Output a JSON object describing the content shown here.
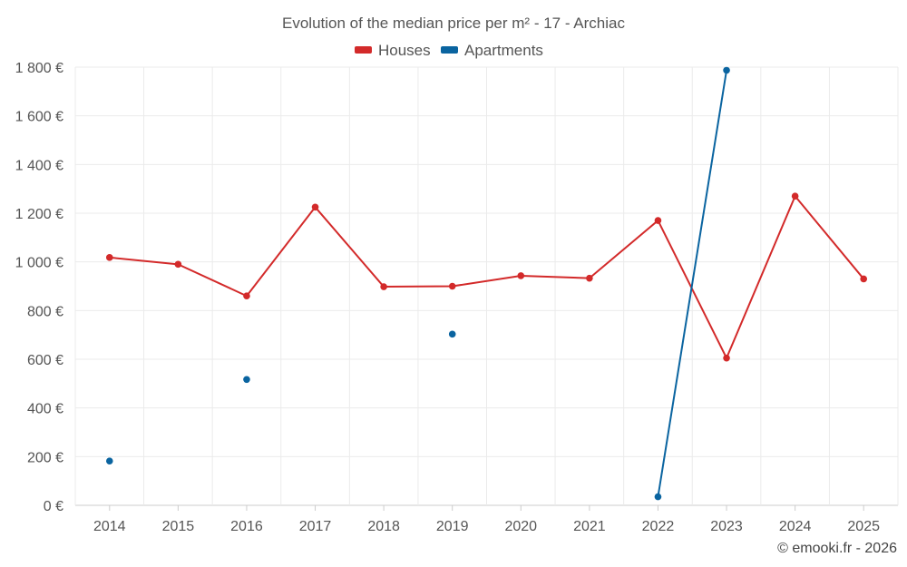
{
  "chart_data": {
    "type": "line",
    "title": "Evolution of the median price per m² - 17 - Archiac",
    "categories": [
      "2014",
      "2015",
      "2016",
      "2017",
      "2018",
      "2019",
      "2020",
      "2021",
      "2022",
      "2023",
      "2024",
      "2025"
    ],
    "series": [
      {
        "name": "Houses",
        "color": "#d32a2a",
        "values": [
          1018,
          990,
          860,
          1225,
          898,
          900,
          943,
          933,
          1170,
          605,
          1270,
          930
        ]
      },
      {
        "name": "Apartments",
        "color": "#0a64a0",
        "values": [
          182,
          null,
          517,
          null,
          null,
          703,
          null,
          null,
          35,
          1787,
          null,
          null
        ]
      }
    ],
    "yticks": [
      0,
      200,
      400,
      600,
      800,
      1000,
      1200,
      1400,
      1600,
      1800
    ],
    "ytick_labels": [
      "0 €",
      "200 €",
      "400 €",
      "600 €",
      "800 €",
      "1 000 €",
      "1 200 €",
      "1 400 €",
      "1 600 €",
      "1 800 €"
    ],
    "ylim": [
      0,
      1800
    ],
    "xlabel": "",
    "ylabel": "",
    "legend_position": "top-center",
    "grid": true
  },
  "credit": "© emooki.fr - 2026"
}
